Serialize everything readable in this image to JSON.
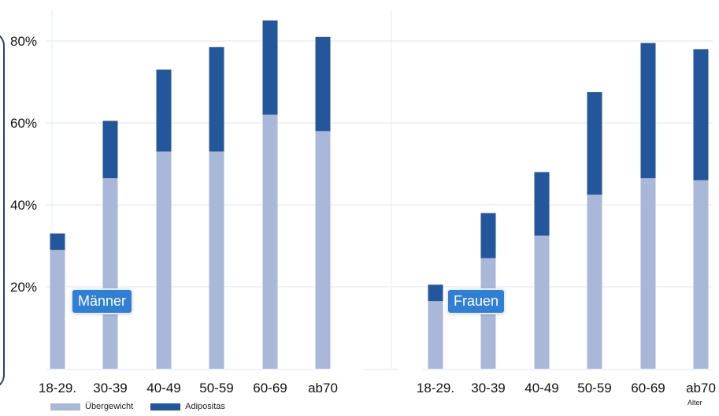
{
  "chart_data": {
    "type": "bar",
    "stacked": true,
    "panels": [
      {
        "label": "Männer",
        "categories": [
          "18-29.",
          "30-39",
          "40-49",
          "50-59",
          "60-69",
          "ab70"
        ],
        "series": [
          {
            "name": "Übergewicht",
            "values": [
              29,
              46.5,
              53,
              53,
              62,
              58
            ]
          },
          {
            "name": "Adipositas",
            "values": [
              4,
              14,
              20,
              25.5,
              23,
              23
            ]
          }
        ]
      },
      {
        "label": "Frauen",
        "categories": [
          "18-29.",
          "30-39",
          "40-49",
          "50-59",
          "60-69",
          "ab70"
        ],
        "series": [
          {
            "name": "Übergewicht",
            "values": [
              16.5,
              27,
              32.5,
              42.5,
              46.5,
              46
            ]
          },
          {
            "name": "Adipositas",
            "values": [
              4,
              11,
              15.5,
              25,
              33,
              32
            ]
          }
        ]
      }
    ],
    "yticks": [
      "20%",
      "40%",
      "60%",
      "80%"
    ],
    "ylim": [
      0,
      90
    ],
    "xlabel": "Alter",
    "colors": {
      "Übergewicht": "#a9b7d8",
      "Adipositas": "#23569a"
    },
    "grid": true,
    "legend": "bottom-left"
  },
  "legend": [
    {
      "label": "Übergewicht",
      "color": "#a9b7d8"
    },
    {
      "label": "Adipositas",
      "color": "#23569a"
    }
  ],
  "axis_title": "Alter"
}
